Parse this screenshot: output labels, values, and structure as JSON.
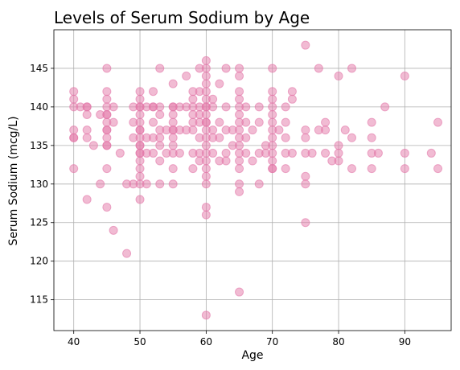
{
  "chart_data": {
    "type": "scatter",
    "title": "Levels of Serum Sodium by Age",
    "xlabel": "Age",
    "ylabel": "Serum Sodium (mcg/L)",
    "xlim": [
      37,
      97
    ],
    "ylim": [
      111,
      150
    ],
    "xticks": [
      40,
      50,
      60,
      70,
      80,
      90
    ],
    "yticks": [
      115,
      120,
      125,
      130,
      135,
      140,
      145
    ],
    "grid": true,
    "point_color": "#e377a8",
    "points": [
      [
        40,
        142
      ],
      [
        40,
        141
      ],
      [
        40,
        140
      ],
      [
        40,
        137
      ],
      [
        40,
        136
      ],
      [
        40,
        136
      ],
      [
        40,
        132
      ],
      [
        41,
        140
      ],
      [
        42,
        140
      ],
      [
        42,
        140
      ],
      [
        42,
        139
      ],
      [
        42,
        137
      ],
      [
        42,
        136
      ],
      [
        42,
        128
      ],
      [
        43,
        135
      ],
      [
        44,
        139
      ],
      [
        44,
        130
      ],
      [
        45,
        145
      ],
      [
        45,
        142
      ],
      [
        45,
        141
      ],
      [
        45,
        140
      ],
      [
        45,
        139
      ],
      [
        45,
        139
      ],
      [
        45,
        138
      ],
      [
        45,
        137
      ],
      [
        45,
        137
      ],
      [
        45,
        136
      ],
      [
        45,
        135
      ],
      [
        45,
        135
      ],
      [
        45,
        132
      ],
      [
        45,
        127
      ],
      [
        46,
        140
      ],
      [
        46,
        138
      ],
      [
        46,
        124
      ],
      [
        47,
        134
      ],
      [
        48,
        130
      ],
      [
        48,
        121
      ],
      [
        49,
        140
      ],
      [
        49,
        138
      ],
      [
        49,
        136
      ],
      [
        49,
        130
      ],
      [
        50,
        142
      ],
      [
        50,
        141
      ],
      [
        50,
        140
      ],
      [
        50,
        140
      ],
      [
        50,
        139
      ],
      [
        50,
        138
      ],
      [
        50,
        137
      ],
      [
        50,
        137
      ],
      [
        50,
        136
      ],
      [
        50,
        135
      ],
      [
        50,
        135
      ],
      [
        50,
        134
      ],
      [
        50,
        134
      ],
      [
        50,
        133
      ],
      [
        50,
        132
      ],
      [
        50,
        131
      ],
      [
        50,
        130
      ],
      [
        50,
        128
      ],
      [
        51,
        140
      ],
      [
        51,
        136
      ],
      [
        51,
        134
      ],
      [
        51,
        130
      ],
      [
        52,
        142
      ],
      [
        52,
        140
      ],
      [
        52,
        140
      ],
      [
        52,
        138
      ],
      [
        52,
        136
      ],
      [
        52,
        134
      ],
      [
        53,
        145
      ],
      [
        53,
        140
      ],
      [
        53,
        139
      ],
      [
        53,
        137
      ],
      [
        53,
        136
      ],
      [
        53,
        135
      ],
      [
        53,
        133
      ],
      [
        53,
        130
      ],
      [
        54,
        137
      ],
      [
        54,
        134
      ],
      [
        55,
        143
      ],
      [
        55,
        140
      ],
      [
        55,
        140
      ],
      [
        55,
        139
      ],
      [
        55,
        138
      ],
      [
        55,
        137
      ],
      [
        55,
        137
      ],
      [
        55,
        136
      ],
      [
        55,
        135
      ],
      [
        55,
        134
      ],
      [
        55,
        132
      ],
      [
        55,
        130
      ],
      [
        56,
        140
      ],
      [
        56,
        137
      ],
      [
        56,
        134
      ],
      [
        57,
        144
      ],
      [
        57,
        140
      ],
      [
        57,
        137
      ],
      [
        58,
        142
      ],
      [
        58,
        141
      ],
      [
        58,
        140
      ],
      [
        58,
        139
      ],
      [
        58,
        138
      ],
      [
        58,
        137
      ],
      [
        58,
        134
      ],
      [
        58,
        132
      ],
      [
        59,
        145
      ],
      [
        59,
        142
      ],
      [
        59,
        140
      ],
      [
        59,
        139
      ],
      [
        59,
        138
      ],
      [
        59,
        136
      ],
      [
        59,
        134
      ],
      [
        59,
        133
      ],
      [
        60,
        146
      ],
      [
        60,
        145
      ],
      [
        60,
        144
      ],
      [
        60,
        143
      ],
      [
        60,
        142
      ],
      [
        60,
        141
      ],
      [
        60,
        140
      ],
      [
        60,
        140
      ],
      [
        60,
        139
      ],
      [
        60,
        138
      ],
      [
        60,
        138
      ],
      [
        60,
        137
      ],
      [
        60,
        136
      ],
      [
        60,
        135
      ],
      [
        60,
        134
      ],
      [
        60,
        133
      ],
      [
        60,
        132
      ],
      [
        60,
        131
      ],
      [
        60,
        130
      ],
      [
        60,
        127
      ],
      [
        60,
        126
      ],
      [
        60,
        113
      ],
      [
        61,
        141
      ],
      [
        61,
        140
      ],
      [
        61,
        137
      ],
      [
        61,
        136
      ],
      [
        61,
        134
      ],
      [
        62,
        143
      ],
      [
        62,
        138
      ],
      [
        62,
        136
      ],
      [
        62,
        133
      ],
      [
        63,
        145
      ],
      [
        63,
        140
      ],
      [
        63,
        137
      ],
      [
        63,
        134
      ],
      [
        63,
        133
      ],
      [
        64,
        137
      ],
      [
        64,
        135
      ],
      [
        65,
        145
      ],
      [
        65,
        144
      ],
      [
        65,
        142
      ],
      [
        65,
        141
      ],
      [
        65,
        140
      ],
      [
        65,
        139
      ],
      [
        65,
        138
      ],
      [
        65,
        137
      ],
      [
        65,
        136
      ],
      [
        65,
        135
      ],
      [
        65,
        134
      ],
      [
        65,
        133
      ],
      [
        65,
        132
      ],
      [
        65,
        130
      ],
      [
        65,
        129
      ],
      [
        65,
        116
      ],
      [
        66,
        140
      ],
      [
        66,
        138
      ],
      [
        66,
        136
      ],
      [
        66,
        134
      ],
      [
        67,
        137
      ],
      [
        67,
        133
      ],
      [
        68,
        140
      ],
      [
        68,
        138
      ],
      [
        68,
        134
      ],
      [
        68,
        130
      ],
      [
        69,
        135
      ],
      [
        69,
        134
      ],
      [
        70,
        145
      ],
      [
        70,
        142
      ],
      [
        70,
        141
      ],
      [
        70,
        140
      ],
      [
        70,
        139
      ],
      [
        70,
        138
      ],
      [
        70,
        137
      ],
      [
        70,
        136
      ],
      [
        70,
        135
      ],
      [
        70,
        134
      ],
      [
        70,
        133
      ],
      [
        70,
        132
      ],
      [
        70,
        132
      ],
      [
        71,
        137
      ],
      [
        72,
        140
      ],
      [
        72,
        138
      ],
      [
        72,
        136
      ],
      [
        72,
        134
      ],
      [
        72,
        132
      ],
      [
        73,
        142
      ],
      [
        73,
        141
      ],
      [
        73,
        134
      ],
      [
        75,
        148
      ],
      [
        75,
        137
      ],
      [
        75,
        136
      ],
      [
        75,
        134
      ],
      [
        75,
        131
      ],
      [
        75,
        130
      ],
      [
        75,
        125
      ],
      [
        76,
        134
      ],
      [
        77,
        145
      ],
      [
        77,
        137
      ],
      [
        78,
        138
      ],
      [
        78,
        137
      ],
      [
        78,
        134
      ],
      [
        79,
        133
      ],
      [
        80,
        144
      ],
      [
        80,
        135
      ],
      [
        80,
        134
      ],
      [
        80,
        133
      ],
      [
        81,
        137
      ],
      [
        82,
        145
      ],
      [
        82,
        136
      ],
      [
        82,
        132
      ],
      [
        85,
        138
      ],
      [
        85,
        136
      ],
      [
        85,
        134
      ],
      [
        85,
        132
      ],
      [
        86,
        134
      ],
      [
        87,
        140
      ],
      [
        90,
        144
      ],
      [
        90,
        134
      ],
      [
        90,
        132
      ],
      [
        94,
        134
      ],
      [
        95,
        138
      ],
      [
        95,
        132
      ]
    ]
  }
}
